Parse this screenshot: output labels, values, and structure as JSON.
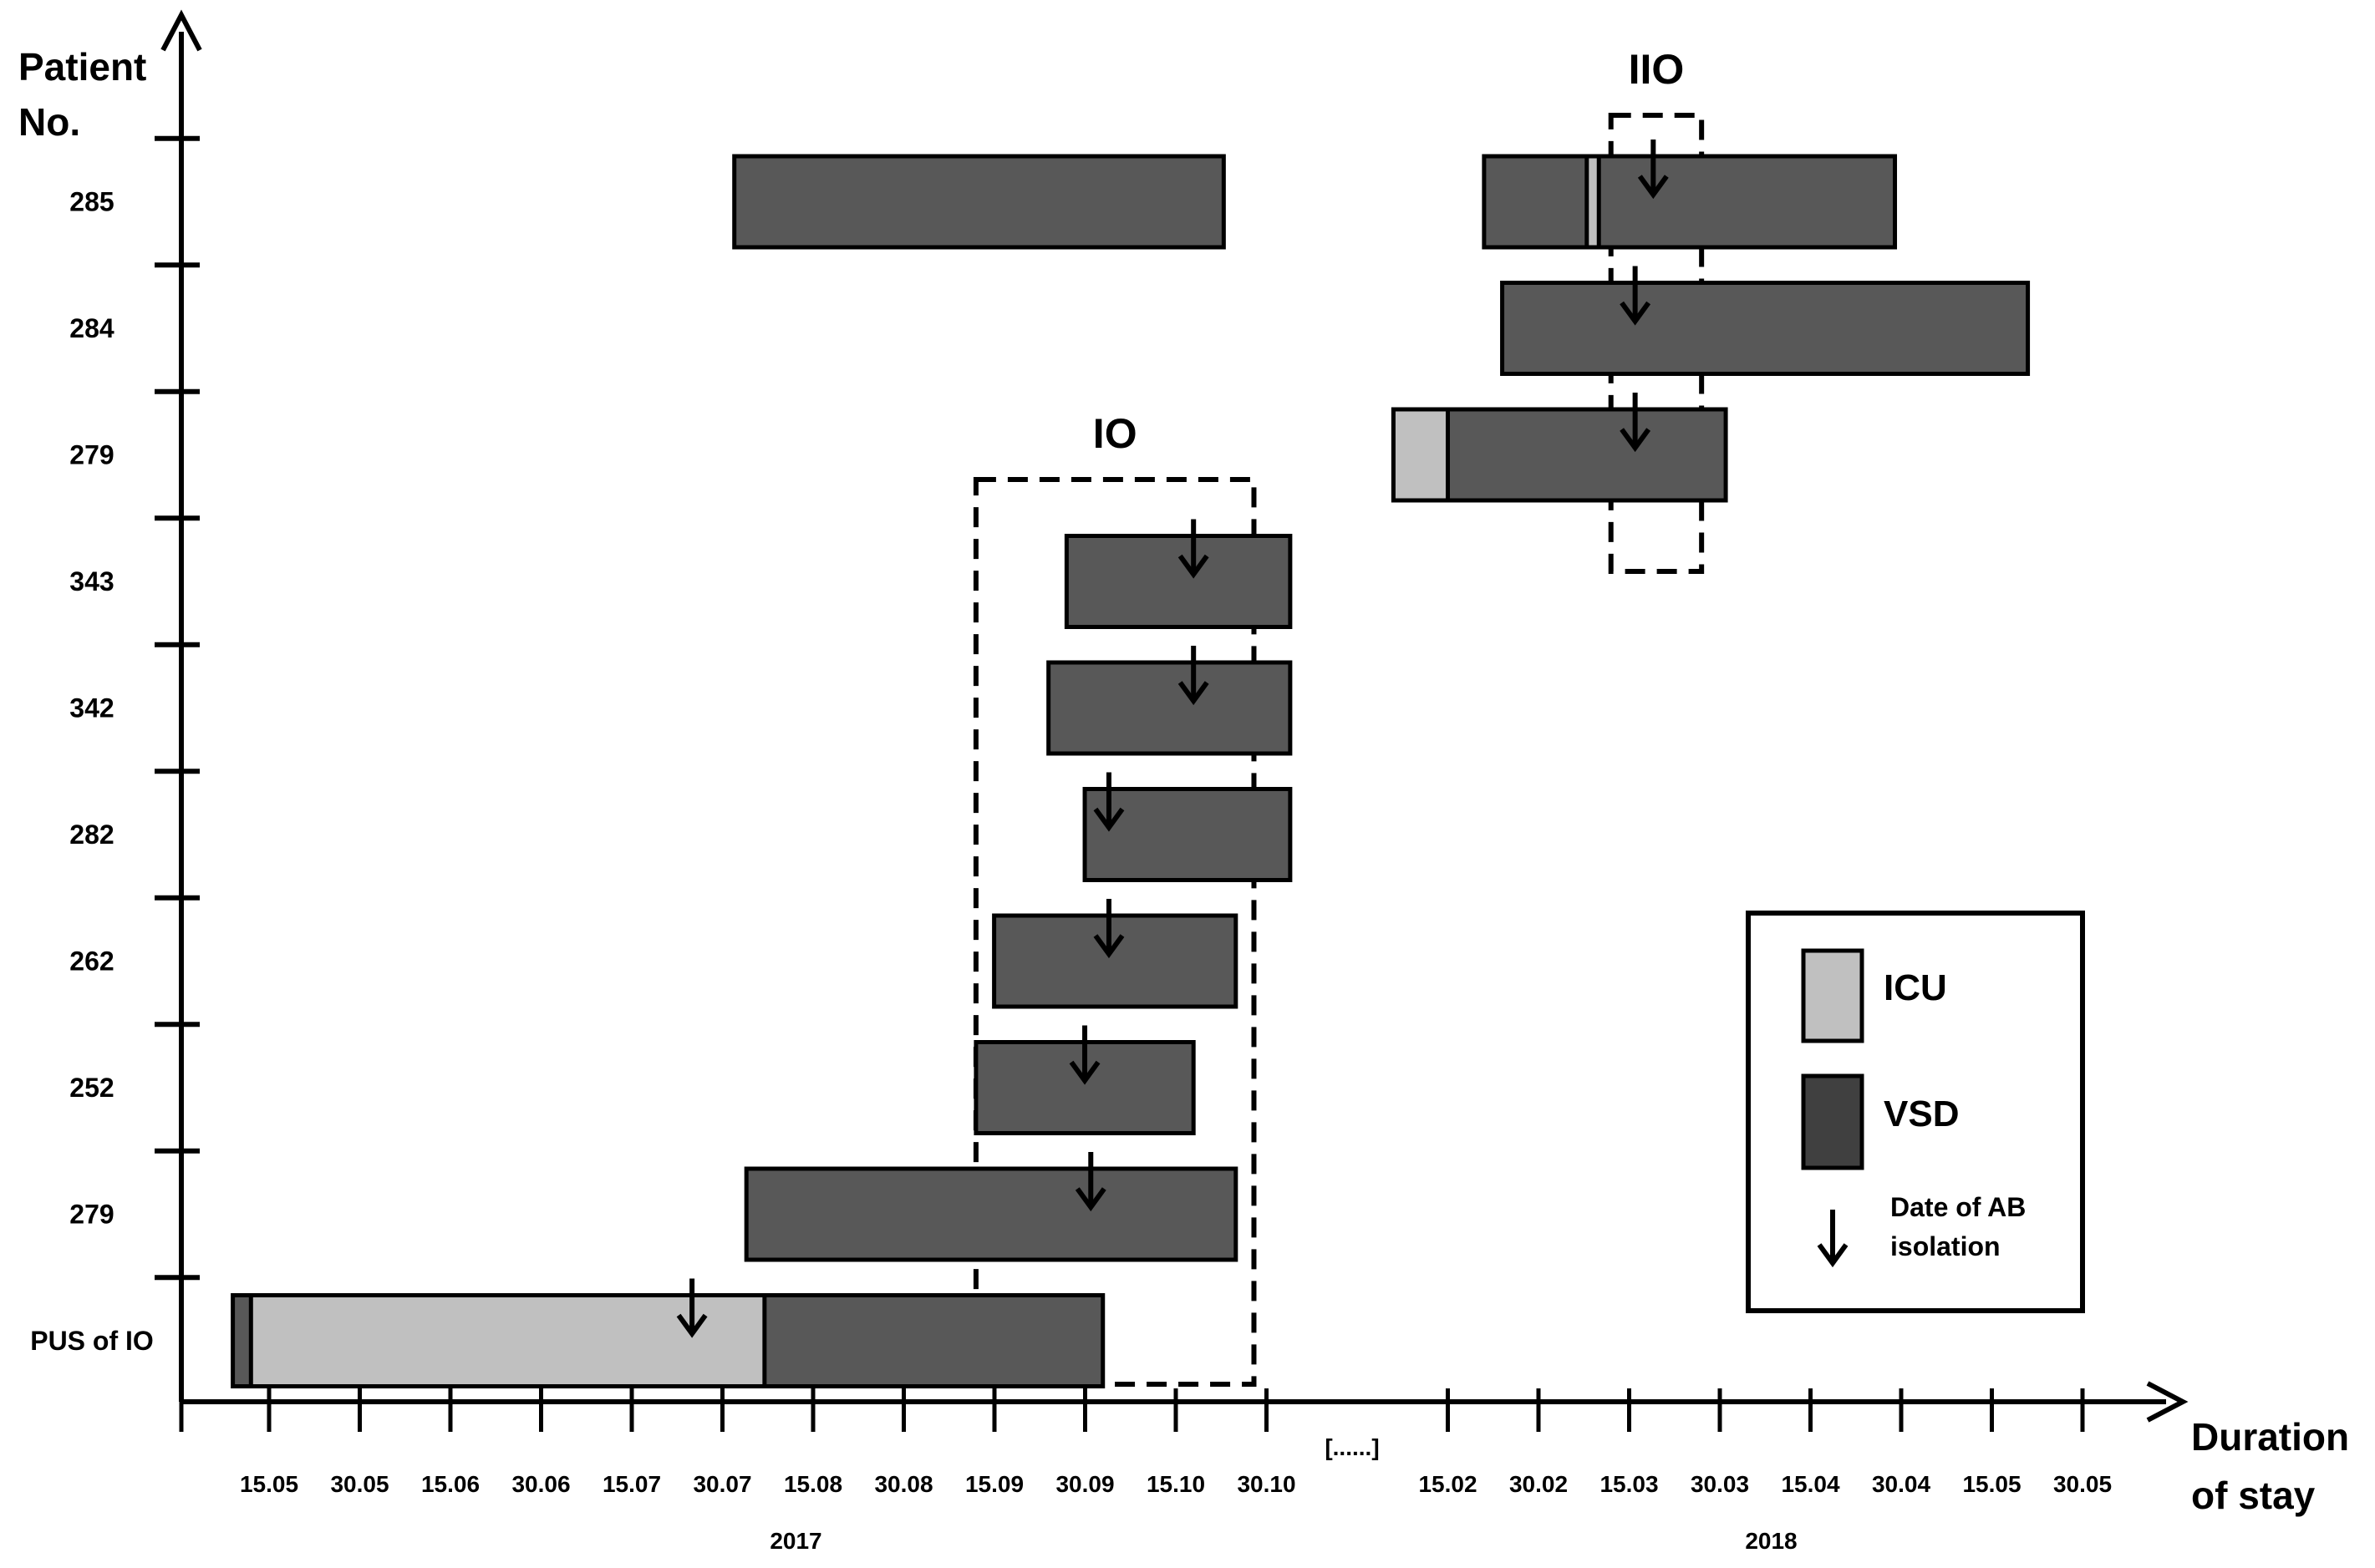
{
  "chart_data": {
    "type": "gantt",
    "title": "",
    "ylabel": "Patient\nNo.",
    "xlabel": "Duration\nof stay",
    "x_ticks": [
      "15.05",
      "30.05",
      "15.06",
      "30.06",
      "15.07",
      "30.07",
      "15.08",
      "30.08",
      "15.09",
      "30.09",
      "15.10",
      "30.10",
      "[......]",
      "15.02",
      "30.02",
      "15.03",
      "30.03",
      "15.04",
      "30.04",
      "15.05",
      "30.05"
    ],
    "years": [
      {
        "label": "2017",
        "anchor": "30.07"
      },
      {
        "label": "2018",
        "anchor": "15.03"
      }
    ],
    "patients": [
      "PUS of IO",
      "279",
      "252",
      "262",
      "282",
      "342",
      "343",
      "279",
      "284",
      "285"
    ],
    "stays": [
      {
        "patient": "PUS of IO",
        "row": 0,
        "start": "2017-05-09",
        "end": "2017-09-30",
        "icu": [
          "2017-05-12",
          "2017-08-05"
        ],
        "ab": "2017-07-24"
      },
      {
        "patient": "279",
        "row": 1,
        "start": "2017-08-02",
        "end": "2017-10-22",
        "ab": "2017-09-28"
      },
      {
        "patient": "252",
        "row": 2,
        "start": "2017-09-09",
        "end": "2017-10-15",
        "ab": "2017-09-27"
      },
      {
        "patient": "262",
        "row": 3,
        "start": "2017-09-12",
        "end": "2017-10-22",
        "ab": "2017-10-01"
      },
      {
        "patient": "282",
        "row": 4,
        "start": "2017-09-27",
        "end": "2017-10-31",
        "ab": "2017-10-01"
      },
      {
        "patient": "342",
        "row": 5,
        "start": "2017-09-21",
        "end": "2017-10-31",
        "ab": "2017-10-15"
      },
      {
        "patient": "343",
        "row": 6,
        "start": "2017-09-24",
        "end": "2017-10-31",
        "ab": "2017-10-15"
      },
      {
        "patient": "279",
        "row": 7,
        "start": "2018-02-06",
        "end": "2018-04-02",
        "icu": [
          "2018-02-06",
          "2018-02-15"
        ],
        "ab": "2018-03-18"
      },
      {
        "patient": "284",
        "row": 8,
        "start": "2018-02-24",
        "end": "2018-05-22",
        "ab": "2018-03-18"
      },
      {
        "patient": "285",
        "row": 9,
        "start": "2018-02-21",
        "end": "2018-04-30",
        "icu": [
          "2018-03-10",
          "2018-03-12"
        ],
        "ab": "2018-03-21"
      },
      {
        "patient": "285",
        "row": 9,
        "start": "2017-07-31",
        "end": "2017-10-20"
      }
    ],
    "outbreaks": [
      {
        "label": "IO",
        "start": "2017-09-09",
        "end": "2017-10-25",
        "rows": [
          0,
          7
        ]
      },
      {
        "label": "IIO",
        "start": "2018-03-14",
        "end": "2018-03-29",
        "rows": [
          6.8,
          9.5
        ]
      }
    ],
    "legend": {
      "position": "bottom-right",
      "items": [
        {
          "label": "ICU",
          "color": "#c0c0c0"
        },
        {
          "label": "VSD",
          "color": "#404040"
        },
        {
          "label": "Date of AB\nisolation",
          "symbol": "arrow-down"
        }
      ]
    },
    "colors": {
      "icu": "#c0c0c0",
      "vsd": "#585858",
      "legend_vsd": "#404040",
      "axis": "#000000"
    }
  }
}
